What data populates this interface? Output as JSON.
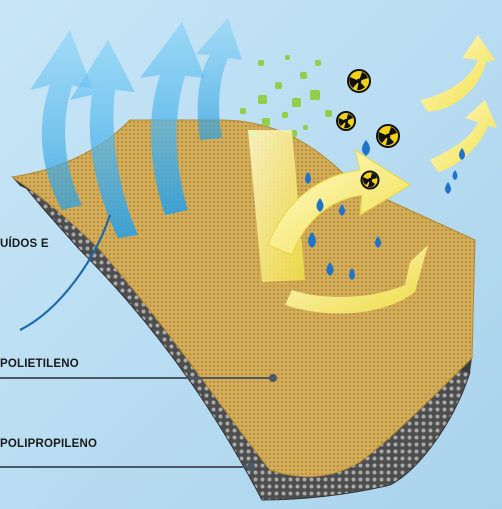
{
  "labels": {
    "fluids": "UÍDOS E",
    "polyethylene": "POLIETILENO",
    "polypropylene": "POLIPROPILENO"
  },
  "colors": {
    "background": "#b9dcf1",
    "top_layer": "#d3ab55",
    "bottom_layer": "#4c4c4c",
    "air_flow": "#49b3ea",
    "vapor": "#8fcf4a",
    "liquid_arrows": "#f6ee7c",
    "droplets": "#1f74c9",
    "hazard": "#f2d31a"
  },
  "icons": [
    "radiation-hazard-icon",
    "water-droplet-icon",
    "air-flow-arrow-icon",
    "liquid-splash-arrow-icon"
  ]
}
